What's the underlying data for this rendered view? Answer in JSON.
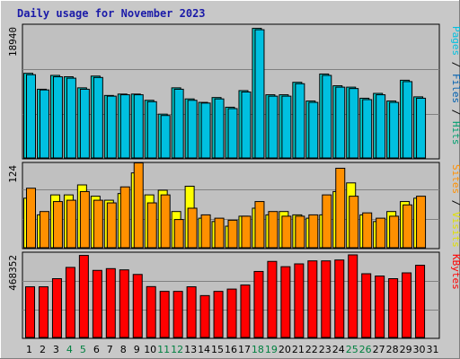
{
  "chart_data": {
    "type": "bar",
    "title": "Daily usage for November 2023",
    "days": [
      "1",
      "2",
      "3",
      "4",
      "5",
      "6",
      "7",
      "8",
      "9",
      "10",
      "11",
      "12",
      "13",
      "14",
      "15",
      "16",
      "17",
      "18",
      "19",
      "20",
      "21",
      "22",
      "23",
      "24",
      "25",
      "26",
      "27",
      "28",
      "29",
      "30",
      "31"
    ],
    "weekend_days": [
      "4",
      "5",
      "11",
      "12",
      "18",
      "19",
      "25",
      "26"
    ],
    "colors": {
      "pages": "#00c0e0",
      "files": "#0060b0",
      "hits": "#00c8c8",
      "visits": "#ffff00",
      "sites": "#ff9000",
      "kbytes": "#ff0000",
      "weekday_label": "#000000",
      "weekend_label": "#008040"
    },
    "panels": [
      {
        "name": "hits",
        "ymax_label": "18940",
        "ymax": 18940,
        "legend": [
          {
            "text": "Pages",
            "color": "#00c0e0"
          },
          {
            "text": " / ",
            "color": "#000000"
          },
          {
            "text": "Files",
            "color": "#0060b0"
          },
          {
            "text": " / ",
            "color": "#000000"
          },
          {
            "text": "Hits",
            "color": "#00a070"
          }
        ],
        "series": [
          {
            "name": "Hits",
            "color": "#00c8c8",
            "values": [
              12300,
              10000,
              12000,
              11800,
              10200,
              11900,
              9100,
              9300,
              9300,
              8400,
              6400,
              10200,
              8600,
              8100,
              8800,
              7400,
              9800,
              18800,
              9200,
              9200,
              11000,
              8300,
              12200,
              10500,
              10300,
              8700,
              9400,
              8300,
              11300,
              8900,
              0
            ]
          },
          {
            "name": "Pages",
            "color": "#00c0e0",
            "values": [
              12100,
              9900,
              11800,
              11600,
              10000,
              11700,
              9000,
              9200,
              9200,
              8200,
              6200,
              10000,
              8400,
              8000,
              8600,
              7200,
              9600,
              18600,
              9000,
              9000,
              10800,
              8100,
              12000,
              10300,
              10100,
              8500,
              9200,
              8100,
              11100,
              8700,
              0
            ]
          }
        ]
      },
      {
        "name": "visits",
        "ymax_label": "124",
        "ymax": 124,
        "legend": [
          {
            "text": "Sites",
            "color": "#ff9000"
          },
          {
            "text": " / ",
            "color": "#000000"
          },
          {
            "text": "Visits",
            "color": "#e0e000"
          }
        ],
        "series": [
          {
            "name": "Visits",
            "color": "#ffff00",
            "values": [
              75,
              50,
              80,
              80,
              95,
              78,
              72,
              82,
              113,
              80,
              87,
              55,
              93,
              45,
              40,
              33,
              48,
              60,
              50,
              55,
              50,
              45,
              50,
              85,
              98,
              50,
              40,
              55,
              70,
              75,
              0
            ]
          },
          {
            "name": "Sites",
            "color": "#ff9000",
            "values": [
              90,
              55,
              70,
              72,
              85,
              72,
              68,
              92,
              128,
              68,
              80,
              43,
              60,
              50,
              45,
              42,
              48,
              70,
              55,
              48,
              48,
              50,
              80,
              120,
              78,
              53,
              45,
              48,
              65,
              78,
              0
            ]
          }
        ]
      },
      {
        "name": "kbytes",
        "ymax_label": "468352",
        "ymax": 468352,
        "legend": [
          {
            "text": "KBytes",
            "color": "#ff0000"
          }
        ],
        "series": [
          {
            "name": "KBytes",
            "color": "#ff0000",
            "values": [
              290000,
              290000,
              336000,
              400000,
              468000,
              383000,
              393000,
              386000,
              360000,
              291000,
              264000,
              264000,
              290000,
              240000,
              264000,
              277000,
              300000,
              377000,
              434000,
              404000,
              420000,
              437000,
              437000,
              442000,
              471000,
              364000,
              351000,
              336000,
              369000,
              412000,
              0
            ]
          }
        ]
      }
    ]
  }
}
